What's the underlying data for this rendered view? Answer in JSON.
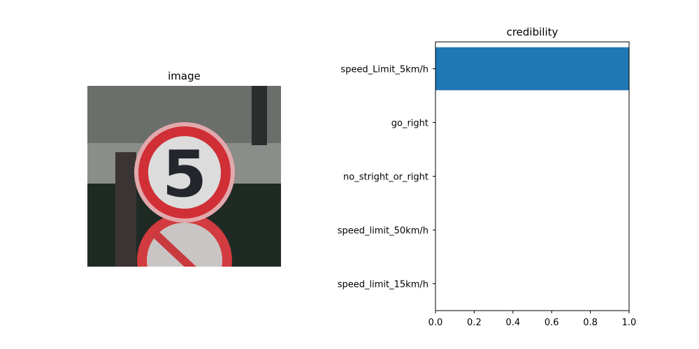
{
  "left_panel": {
    "title": "image"
  },
  "chart_data": {
    "type": "bar",
    "orientation": "horizontal",
    "title": "credibility",
    "xlabel": "",
    "ylabel": "",
    "xlim": [
      0,
      1.0
    ],
    "xticks": [
      "0.0",
      "0.2",
      "0.4",
      "0.6",
      "0.8",
      "1.0"
    ],
    "categories": [
      "speed_Limit_5km/h",
      "go_right",
      "no_stright_or_right",
      "speed_limit_50km/h",
      "speed_limit_15km/h"
    ],
    "values": [
      1.0,
      0.0,
      0.0,
      0.0,
      0.0
    ],
    "bar_color": "#1f77b4",
    "grid": false
  }
}
